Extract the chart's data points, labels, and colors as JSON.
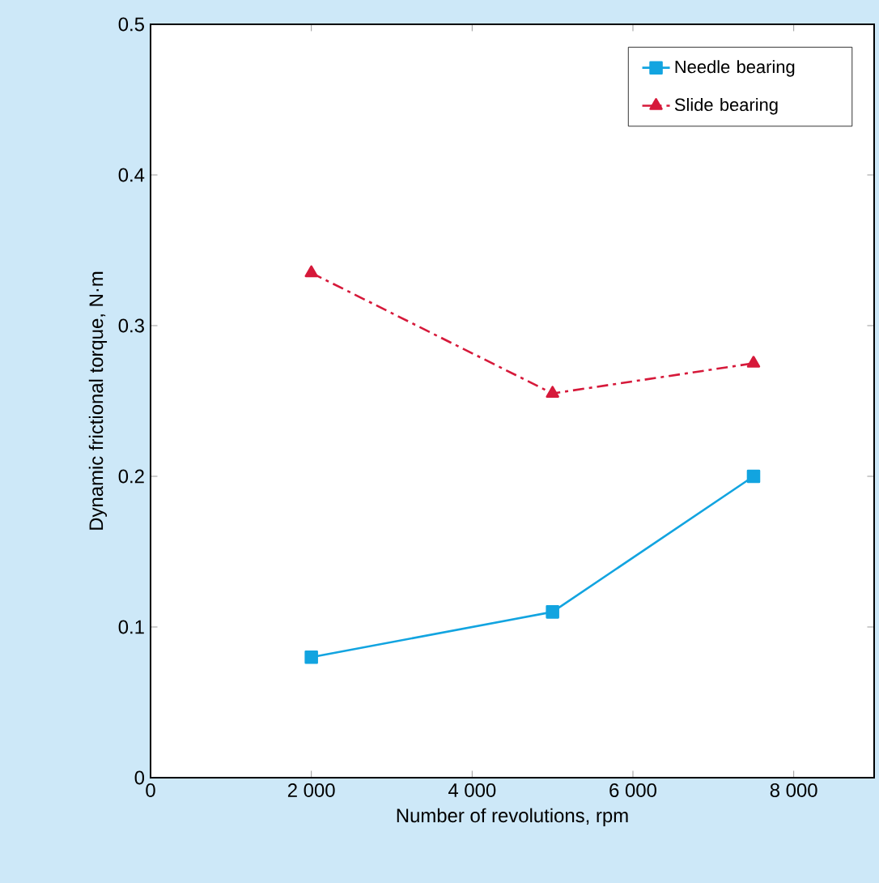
{
  "chart_data": {
    "type": "line",
    "xlabel": "Number of revolutions, rpm",
    "ylabel": "Dynamic frictional torque, N·m",
    "x": [
      2000,
      5000,
      7500
    ],
    "series": [
      {
        "name": "Needle bearing",
        "color": "#12a4e0",
        "values": [
          0.08,
          0.11,
          0.2
        ],
        "marker": "square",
        "line_style": "solid"
      },
      {
        "name": "Slide bearing",
        "color": "#d6193a",
        "values": [
          0.335,
          0.255,
          0.275
        ],
        "marker": "triangle",
        "line_style": "dashed"
      }
    ],
    "xlim": [
      0,
      9000
    ],
    "ylim": [
      0,
      0.5
    ],
    "xticks": [
      0,
      {
        "value": 2000,
        "label": "2 000"
      },
      {
        "value": 4000,
        "label": "4 000"
      },
      {
        "value": 6000,
        "label": "6 000"
      },
      {
        "value": 8000,
        "label": "8 000"
      }
    ],
    "yticks": [
      0,
      0.1,
      0.2,
      0.3,
      0.4,
      0.5
    ],
    "legend": "top right",
    "grid": false
  }
}
